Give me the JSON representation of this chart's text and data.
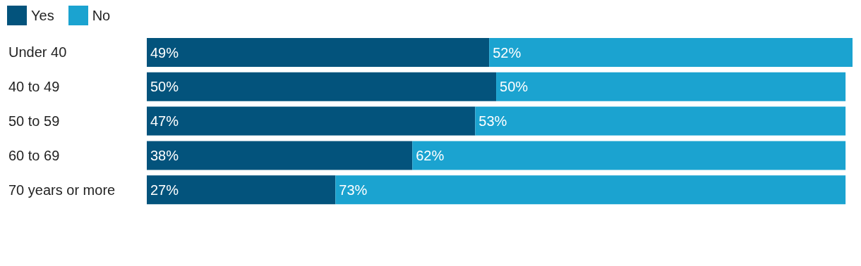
{
  "chart_data": {
    "type": "bar",
    "orientation": "horizontal",
    "stacked": true,
    "legend": "top left",
    "categories": [
      "Under 40",
      "40 to 49",
      "50 to 59",
      "60 to 69",
      "70 years or more"
    ],
    "series": [
      {
        "name": "Yes",
        "color": "#03537c",
        "values": [
          49,
          50,
          47,
          38,
          27
        ],
        "value_labels": [
          "49%",
          "50%",
          "47%",
          "38%",
          "27%"
        ]
      },
      {
        "name": "No",
        "color": "#1ba3d0",
        "values": [
          52,
          50,
          53,
          62,
          73
        ],
        "value_labels": [
          "52%",
          "50%",
          "53%",
          "62%",
          "73%"
        ]
      }
    ]
  }
}
